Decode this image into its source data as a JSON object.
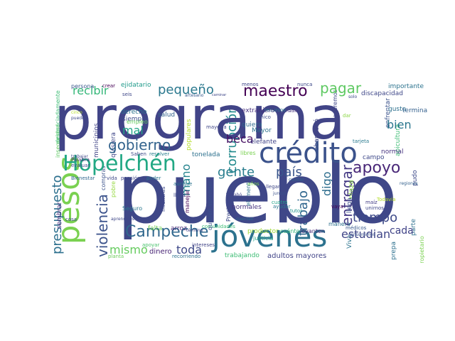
{
  "words": [
    {
      "text": "programa",
      "color": "#414487"
    },
    {
      "text": "pueblo",
      "color": "#3f4788"
    },
    {
      "text": "crédito",
      "color": "#3b528b"
    },
    {
      "text": "jóvenes",
      "color": "#2c728e"
    },
    {
      "text": "Hopelchén",
      "color": "#22a884"
    },
    {
      "text": "pesos",
      "color": "#7ad151"
    },
    {
      "text": "Campeche",
      "color": "#31688e"
    },
    {
      "text": "maestro",
      "color": "#440154"
    },
    {
      "text": "apoyo",
      "color": "#482677"
    },
    {
      "text": "pequeño",
      "color": "#2a788e"
    },
    {
      "text": "gobierno",
      "color": "#33638d"
    },
    {
      "text": "pagar",
      "color": "#5ec962"
    },
    {
      "text": "país",
      "color": "#39558c"
    },
    {
      "text": "gente",
      "color": "#287d8e"
    },
    {
      "text": "tiempo",
      "color": "#3e4a89"
    },
    {
      "text": "violencia",
      "color": "#3b528b"
    },
    {
      "text": "recibir",
      "color": "#35b779"
    },
    {
      "text": "presupuesto",
      "color": "#2d708e"
    },
    {
      "text": "estudian",
      "color": "#404688"
    },
    {
      "text": "mismo",
      "color": "#65cb5e"
    },
    {
      "text": "toda",
      "color": "#3e4989"
    },
    {
      "text": "mano",
      "color": "#25848e"
    },
    {
      "text": "beca",
      "color": "#471063"
    },
    {
      "text": "bien",
      "color": "#2a768e"
    },
    {
      "text": "mal",
      "color": "#20a386"
    },
    {
      "text": "corrupción",
      "color": "#238a8d"
    },
    {
      "text": "trabajo",
      "color": "#31678e"
    },
    {
      "text": "entregar",
      "color": "#443983"
    },
    {
      "text": "digo",
      "color": "#2e6e8e"
    },
    {
      "text": "cada",
      "color": "#404387"
    },
    {
      "text": "normales",
      "color": "#46337f"
    },
    {
      "text": "adultos mayores",
      "color": "#414487"
    },
    {
      "text": "trabajando",
      "color": "#3dbc74"
    },
    {
      "text": "dinero",
      "color": "#482475"
    },
    {
      "text": "extranjero",
      "color": "#46307e"
    },
    {
      "text": "quiera",
      "color": "#306a8e"
    },
    {
      "text": "Mayor",
      "color": "#2d718e"
    },
    {
      "text": "quieren aprender",
      "color": "#3b528b"
    },
    {
      "text": "ejidatario",
      "color": "#1f9a8a"
    },
    {
      "text": "importante",
      "color": "#2c738e"
    },
    {
      "text": "discapacidad",
      "color": "#3f4788"
    },
    {
      "text": "persona",
      "color": "#39568c"
    },
    {
      "text": "crear",
      "color": "#440154"
    },
    {
      "text": "plaza",
      "color": "#8bd646"
    },
    {
      "text": "derecho",
      "color": "#2c738e"
    },
    {
      "text": "salud",
      "color": "#33638d"
    },
    {
      "text": "siempre",
      "color": "#3d4d8a"
    },
    {
      "text": "tonelada",
      "color": "#2d718e"
    },
    {
      "text": "elefante",
      "color": "#414487"
    },
    {
      "text": "libres",
      "color": "#7ad151"
    },
    {
      "text": "campo",
      "color": "#3e4989"
    },
    {
      "text": "normal",
      "color": "#46337f"
    },
    {
      "text": "gusto",
      "color": "#2d708e"
    },
    {
      "text": "termina",
      "color": "#34608d"
    },
    {
      "text": "productor",
      "color": "#a0da39"
    },
    {
      "text": "falta",
      "color": "#73d056"
    },
    {
      "text": "arroz",
      "color": "#482878"
    },
    {
      "text": "Seguro",
      "color": "#2a788e"
    },
    {
      "text": "manera",
      "color": "#2d708e"
    },
    {
      "text": "médicos",
      "color": "#38598c"
    },
    {
      "text": "cuánto",
      "color": "#35b779"
    },
    {
      "text": "levanten",
      "color": "#472c7a"
    },
    {
      "text": "unirnos",
      "color": "#3f4788"
    },
    {
      "text": "maíz",
      "color": "#433e85"
    },
    {
      "text": "llega",
      "color": "#3b528b"
    },
    {
      "text": "Viva",
      "color": "#2c738e"
    },
    {
      "text": "tutor",
      "color": "#21918c"
    },
    {
      "text": "vaya",
      "color": "#440154"
    },
    {
      "text": "cuatro",
      "color": "#1fa187"
    },
    {
      "text": "ayudar",
      "color": "#2a768e"
    },
    {
      "text": "justicia",
      "color": "#20a486"
    },
    {
      "text": "pensión",
      "color": "#3f4788"
    },
    {
      "text": "poder",
      "color": "#2b758e"
    },
    {
      "text": "vida",
      "color": "#3e4a89"
    },
    {
      "text": "Bienestar",
      "color": "#31678e"
    },
    {
      "text": "evaluar",
      "color": "#3f4788"
    },
    {
      "text": "Palabra",
      "color": "#46327e"
    },
    {
      "text": "cosa",
      "color": "#3f4788"
    },
    {
      "text": "empleo",
      "color": "#65cb5e"
    },
    {
      "text": "apoyar",
      "color": "#4ac16d"
    },
    {
      "text": "planta",
      "color": "#6ccd5a"
    },
    {
      "text": "recorriendo",
      "color": "#2d708e"
    },
    {
      "text": "años",
      "color": "#7ad151"
    },
    {
      "text": "comunidades",
      "color": "#3dbc74"
    },
    {
      "text": "intereses",
      "color": "#414487"
    },
    {
      "text": "Todavía",
      "color": "#b5de2b"
    },
    {
      "text": "consumimos",
      "color": "#3b528b"
    },
    {
      "text": "regiones",
      "color": "#34618d"
    },
    {
      "text": "parte",
      "color": "#2d708e"
    },
    {
      "text": "recursos",
      "color": "#2c728e"
    },
    {
      "text": "único",
      "color": "#3e4a89"
    },
    {
      "text": "nadie",
      "color": "#46327e"
    },
    {
      "text": "tarjeta",
      "color": "#297a8e"
    },
    {
      "text": "mayoría",
      "color": "#3f4788"
    },
    {
      "text": "cuidar",
      "color": "#34618d"
    },
    {
      "text": "llegar",
      "color": "#3f4788"
    },
    {
      "text": "debemos",
      "color": "#3f4788"
    },
    {
      "text": "juntos",
      "color": "#3b528b"
    },
    {
      "text": "lleva",
      "color": "#3e4a89"
    },
    {
      "text": "aunque",
      "color": "#2c738e"
    },
    {
      "text": "acabó",
      "color": "#414487"
    },
    {
      "text": "Saben",
      "color": "#3e4a89"
    },
    {
      "text": "resolver",
      "color": "#287d8e"
    },
    {
      "text": "menos",
      "color": "#3f4788"
    },
    {
      "text": "nunca",
      "color": "#3e4989"
    },
    {
      "text": "seis",
      "color": "#3f4788"
    },
    {
      "text": "artesano",
      "color": "#38598c"
    },
    {
      "text": "caminar",
      "color": "#3f4788"
    },
    {
      "text": "solo",
      "color": "#3e4989"
    },
    {
      "text": "dar",
      "color": "#8bd646"
    },
    {
      "text": "cinco",
      "color": "#b5de2b"
    },
    {
      "text": "pueden",
      "color": "#3e4a89"
    },
    {
      "text": "trabajar",
      "color": "#3f4788"
    },
    {
      "text": "cuenten",
      "color": "#2d708e"
    },
    {
      "text": "término",
      "color": "#414487"
    },
    {
      "text": "aprendices",
      "color": "#3f4788"
    },
    {
      "text": "manejar",
      "color": "#440154"
    },
    {
      "text": "inseguridad",
      "color": "#5ec962"
    },
    {
      "text": "desgraciadamente",
      "color": "#3dbc74"
    },
    {
      "text": "municipios",
      "color": "#414487"
    },
    {
      "text": "prepa",
      "color": "#2d708e"
    },
    {
      "text": "populares",
      "color": "#b5de2b"
    },
    {
      "text": "propietario",
      "color": "#7ad151"
    },
    {
      "text": "quisiera",
      "color": "#3f4788"
    },
    {
      "text": "compras",
      "color": "#3b528b"
    },
    {
      "text": "pudo",
      "color": "#3e4a89"
    },
    {
      "text": "sembrar",
      "color": "#472c7a"
    },
    {
      "text": "queremos",
      "color": "#3f4788"
    },
    {
      "text": "pobre",
      "color": "#95d840"
    },
    {
      "text": "mientras",
      "color": "#3e4a89"
    },
    {
      "text": "apicultura",
      "color": "#3dbc74"
    },
    {
      "text": "enfrentar",
      "color": "#3b528b"
    },
    {
      "text": "elementos",
      "color": "#2d708e"
    },
    {
      "text": "abandonó",
      "color": "#3f4788"
    },
    {
      "text": "Presidencia",
      "color": "#3e4a89"
    }
  ]
}
